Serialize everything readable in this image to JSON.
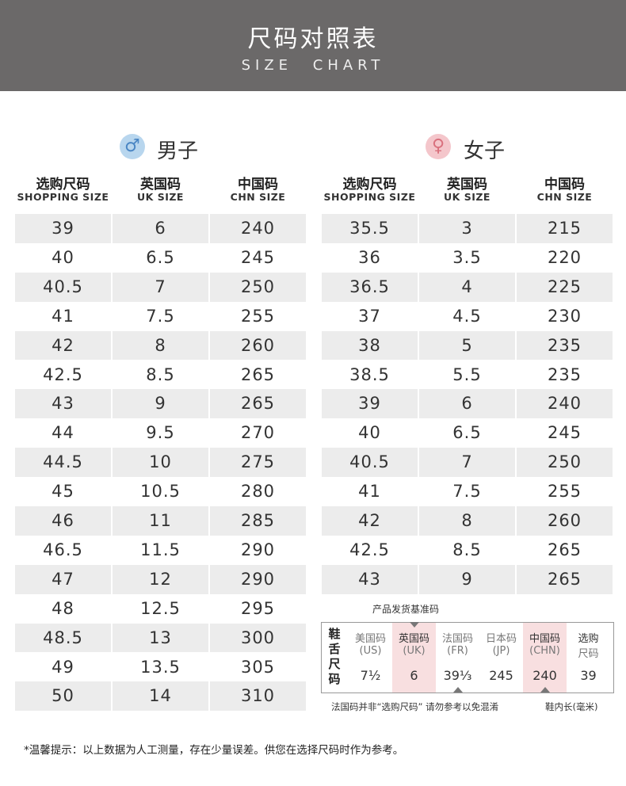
{
  "header": {
    "title": "尺码对照表",
    "subtitle": "SIZE CHART"
  },
  "men": {
    "label": "男子",
    "columns": [
      {
        "zh": "选购尺码",
        "en": "SHOPPING SIZE"
      },
      {
        "zh": "英国码",
        "en": "UK SIZE"
      },
      {
        "zh": "中国码",
        "en": "CHN SIZE"
      }
    ],
    "rows": [
      [
        "39",
        "6",
        "240"
      ],
      [
        "40",
        "6.5",
        "245"
      ],
      [
        "40.5",
        "7",
        "250"
      ],
      [
        "41",
        "7.5",
        "255"
      ],
      [
        "42",
        "8",
        "260"
      ],
      [
        "42.5",
        "8.5",
        "265"
      ],
      [
        "43",
        "9",
        "265"
      ],
      [
        "44",
        "9.5",
        "270"
      ],
      [
        "44.5",
        "10",
        "275"
      ],
      [
        "45",
        "10.5",
        "280"
      ],
      [
        "46",
        "11",
        "285"
      ],
      [
        "46.5",
        "11.5",
        "290"
      ],
      [
        "47",
        "12",
        "290"
      ],
      [
        "48",
        "12.5",
        "295"
      ],
      [
        "48.5",
        "13",
        "300"
      ],
      [
        "49",
        "13.5",
        "305"
      ],
      [
        "50",
        "14",
        "310"
      ]
    ]
  },
  "women": {
    "label": "女子",
    "columns": [
      {
        "zh": "选购尺码",
        "en": "SHOPPING SIZE"
      },
      {
        "zh": "英国码",
        "en": "UK SIZE"
      },
      {
        "zh": "中国码",
        "en": "CHN SIZE"
      }
    ],
    "rows": [
      [
        "35.5",
        "3",
        "215"
      ],
      [
        "36",
        "3.5",
        "220"
      ],
      [
        "36.5",
        "4",
        "225"
      ],
      [
        "37",
        "4.5",
        "230"
      ],
      [
        "38",
        "5",
        "235"
      ],
      [
        "38.5",
        "5.5",
        "235"
      ],
      [
        "39",
        "6",
        "240"
      ],
      [
        "40",
        "6.5",
        "245"
      ],
      [
        "40.5",
        "7",
        "250"
      ],
      [
        "41",
        "7.5",
        "255"
      ],
      [
        "42",
        "8",
        "260"
      ],
      [
        "42.5",
        "8.5",
        "265"
      ],
      [
        "43",
        "9",
        "265"
      ]
    ]
  },
  "legend": {
    "caption": "产品发货基准码",
    "side_label": "鞋舌尺码",
    "columns": [
      {
        "lines": [
          "美国码",
          "(US)"
        ],
        "value": "7½"
      },
      {
        "lines": [
          "英国码",
          "(UK)"
        ],
        "value": "6"
      },
      {
        "lines": [
          "法国码",
          "(FR)"
        ],
        "value": "39⅓"
      },
      {
        "lines": [
          "日本码",
          "(JP)"
        ],
        "value": "245"
      },
      {
        "lines": [
          "中国码",
          "(CHN)"
        ],
        "value": "240"
      },
      {
        "lines": [
          "选购",
          "尺码"
        ],
        "value": "39"
      }
    ],
    "footer_left": "法国码并非“选购尺码” 请勿参考以免混淆",
    "footer_right": "鞋内长(毫米)"
  },
  "note": "*温馨提示：以上数据为人工测量，存在少量误差。供您在选择尺码时作为参考。"
}
